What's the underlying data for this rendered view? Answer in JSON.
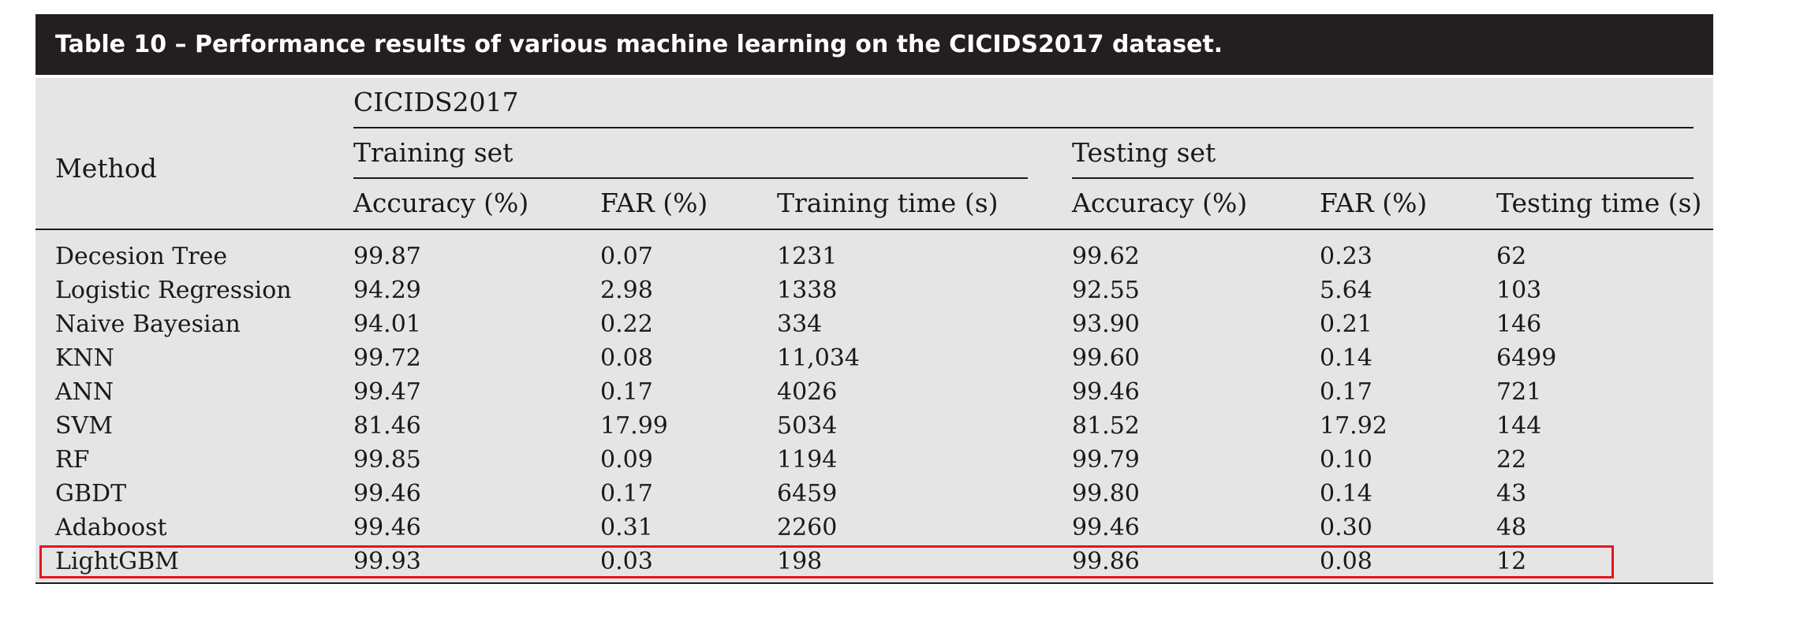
{
  "title": "Table 10 – Performance results of various machine learning on the CICIDS2017 dataset.",
  "headers": {
    "method": "Method",
    "dataset": "CICIDS2017",
    "training_set": "Training set",
    "testing_set": "Testing set",
    "columns": [
      "Accuracy (%)",
      "FAR (%)",
      "Training time (s)",
      "Accuracy (%)",
      "FAR (%)",
      "Testing time (s)"
    ]
  },
  "rows": [
    [
      "Decesion Tree",
      "99.87",
      "0.07",
      "1231",
      "99.62",
      "0.23",
      "62"
    ],
    [
      "Logistic Regression",
      "94.29",
      "2.98",
      "1338",
      "92.55",
      "5.64",
      "103"
    ],
    [
      "Naive Bayesian",
      "94.01",
      "0.22",
      "334",
      "93.90",
      "0.21",
      "146"
    ],
    [
      "KNN",
      "99.72",
      "0.08",
      "11,034",
      "99.60",
      "0.14",
      "6499"
    ],
    [
      "ANN",
      "99.47",
      "0.17",
      "4026",
      "99.46",
      "0.17",
      "721"
    ],
    [
      "SVM",
      "81.46",
      "17.99",
      "5034",
      "81.52",
      "17.92",
      "144"
    ],
    [
      "RF",
      "99.85",
      "0.09",
      "1194",
      "99.79",
      "0.10",
      "22"
    ],
    [
      "GBDT",
      "99.46",
      "0.17",
      "6459",
      "99.80",
      "0.14",
      "43"
    ],
    [
      "Adaboost",
      "99.46",
      "0.31",
      "2260",
      "99.46",
      "0.30",
      "48"
    ],
    [
      "LightGBM",
      "99.93",
      "0.03",
      "198",
      "99.86",
      "0.08",
      "12"
    ]
  ],
  "highlighted_row": "LightGBM",
  "highlight_color": "#e8141b"
}
